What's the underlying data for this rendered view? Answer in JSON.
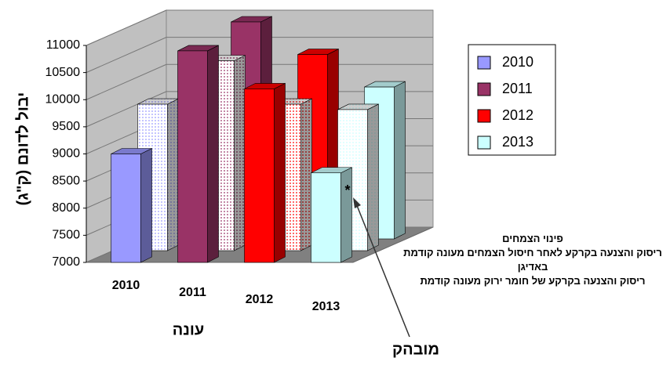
{
  "chart_data": {
    "type": "bar3d",
    "y_label": "יבול לדונם (ק\"ג)",
    "x_label": "עונה",
    "categories": [
      "2010",
      "2011",
      "2012",
      "2013"
    ],
    "colors": [
      "#9999ff",
      "#993366",
      "#ff0000",
      "#ccffff"
    ],
    "series": [
      {
        "name": "ריסוק והצנעה בקרקע של חומר ירוק מעונה קודמת",
        "pattern": "solid",
        "values": [
          9000,
          10900,
          10200,
          8650
        ]
      },
      {
        "name": "ריסוק והצנעה בקרקע לאחר חיסול הצמחים מעונה קודמת באדיגן",
        "pattern": "dots",
        "values": [
          9700,
          10500,
          9700,
          9600
        ]
      },
      {
        "name": "פינוי הצמחים",
        "pattern": "solid",
        "values": [
          9400,
          11000,
          10400,
          9800
        ]
      }
    ],
    "ylim": [
      7000,
      11000
    ],
    "yticks": [
      7000,
      7500,
      8000,
      8500,
      9000,
      9500,
      10000,
      10500,
      11000
    ],
    "grid": true,
    "legend": "right",
    "annotation_mark": "*",
    "annotation": "מובהק"
  }
}
